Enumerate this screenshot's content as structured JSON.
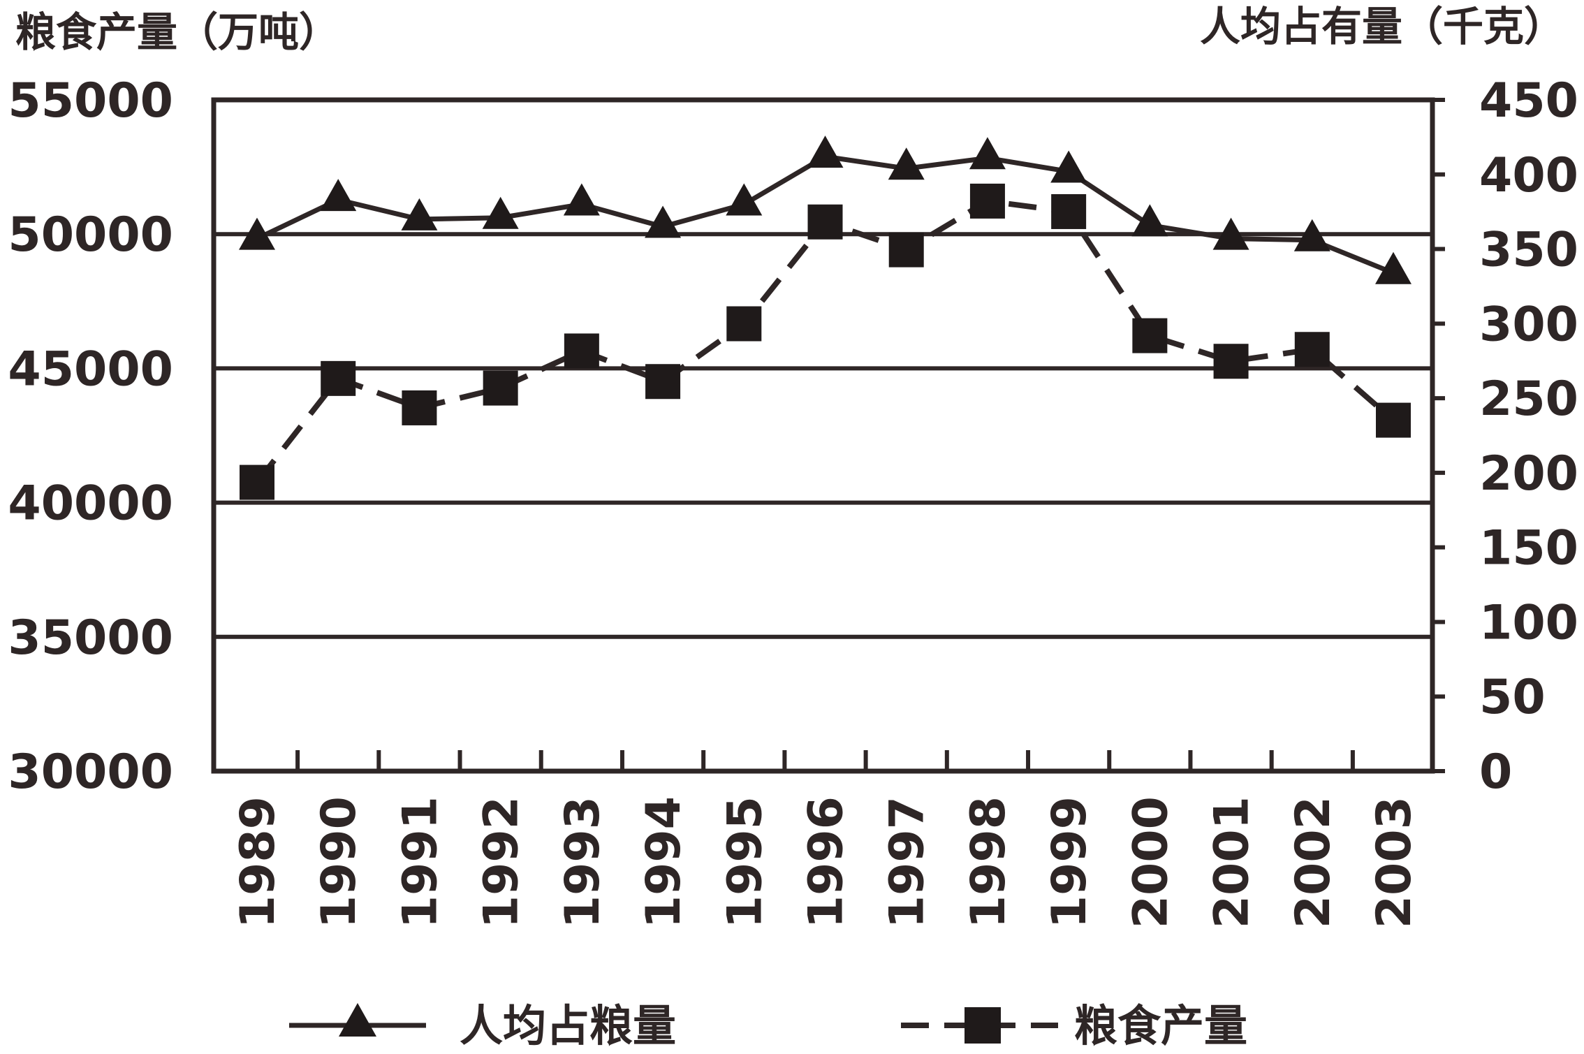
{
  "chart_data": {
    "type": "line",
    "left_axis_title": "粮食产量（万吨）",
    "right_axis_title": "人均占有量（千克）",
    "categories": [
      "1989",
      "1990",
      "1991",
      "1992",
      "1993",
      "1994",
      "1995",
      "1996",
      "1997",
      "1998",
      "1999",
      "2000",
      "2001",
      "2002",
      "2003"
    ],
    "y_left": {
      "min": 30000,
      "max": 55000,
      "ticks": [
        55000,
        50000,
        45000,
        40000,
        35000,
        30000
      ]
    },
    "y_right": {
      "min": 0,
      "max": 450,
      "ticks": [
        450,
        400,
        350,
        300,
        250,
        200,
        150,
        100,
        50,
        0
      ]
    },
    "grid": true,
    "legend_position": "bottom",
    "series": [
      {
        "name": "人均占粮量",
        "axis": "right",
        "style": "solid-triangle",
        "values": [
          357,
          383,
          370,
          371,
          380,
          365,
          380,
          412,
          404,
          411,
          402,
          366,
          357,
          356,
          334
        ]
      },
      {
        "name": "粮食产量",
        "axis": "left",
        "style": "dashed-square",
        "values": [
          40755,
          44624,
          43529,
          44266,
          45649,
          44510,
          46662,
          50454,
          49417,
          51230,
          50839,
          46218,
          45264,
          45706,
          43070
        ]
      }
    ]
  }
}
